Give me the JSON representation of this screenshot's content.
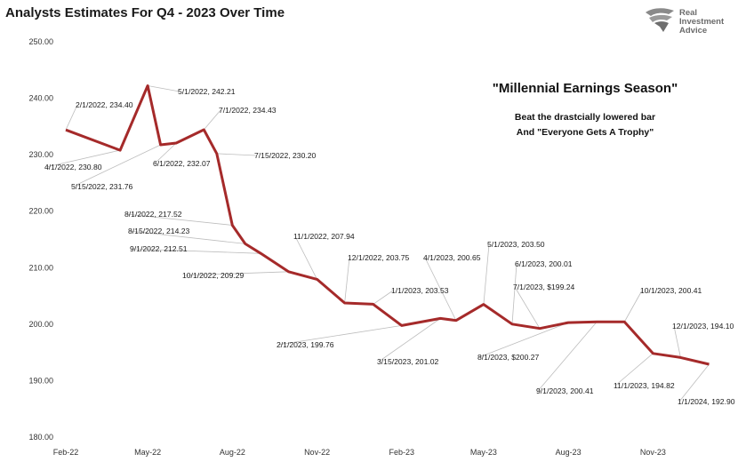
{
  "logo": {
    "line1": "Real",
    "line2": "Investment",
    "line3": "Advice"
  },
  "chart_data": {
    "type": "line",
    "title": "Analysts Estimates For Q4 - 2023 Over Time",
    "xlabel": "",
    "ylabel": "",
    "ylim": [
      180,
      250
    ],
    "yticks": [
      "180.00",
      "190.00",
      "200.00",
      "210.00",
      "220.00",
      "230.00",
      "240.00",
      "250.00"
    ],
    "xticks": [
      {
        "label": "Feb-22",
        "date": "2022-02-01"
      },
      {
        "label": "May-22",
        "date": "2022-05-01"
      },
      {
        "label": "Aug-22",
        "date": "2022-08-01"
      },
      {
        "label": "Nov-22",
        "date": "2022-11-01"
      },
      {
        "label": "Feb-23",
        "date": "2023-02-01"
      },
      {
        "label": "May-23",
        "date": "2023-05-01"
      },
      {
        "label": "Aug-23",
        "date": "2023-08-01"
      },
      {
        "label": "Nov-23",
        "date": "2023-11-01"
      }
    ],
    "xlim": [
      "2022-02-01",
      "2024-01-15"
    ],
    "line_color": "#a52a2a",
    "grid": false,
    "annotations": [
      "\"Millennial Earnings Season\"",
      "Beat the drastcially lowered bar",
      "And \"Everyone Gets A Trophy\""
    ],
    "points": [
      {
        "date": "2022-02-01",
        "value": 234.4,
        "label": "2/1/2022, 234.40"
      },
      {
        "date": "2022-04-01",
        "value": 230.8,
        "label": "4/1/2022, 230.80"
      },
      {
        "date": "2022-05-01",
        "value": 242.21,
        "label": "5/1/2022, 242.21"
      },
      {
        "date": "2022-05-15",
        "value": 231.76,
        "label": "5/15/2022, 231.76"
      },
      {
        "date": "2022-06-01",
        "value": 232.07,
        "label": "6/1/2022, 232.07"
      },
      {
        "date": "2022-07-01",
        "value": 234.43,
        "label": "7/1/2022, 234.43"
      },
      {
        "date": "2022-07-15",
        "value": 230.2,
        "label": "7/15/2022, 230.20"
      },
      {
        "date": "2022-08-01",
        "value": 217.52,
        "label": "8/1/2022, 217.52"
      },
      {
        "date": "2022-08-15",
        "value": 214.23,
        "label": "8/15/2022, 214.23"
      },
      {
        "date": "2022-09-01",
        "value": 212.51,
        "label": "9/1/2022, 212.51"
      },
      {
        "date": "2022-10-01",
        "value": 209.29,
        "label": "10/1/2022, 209.29"
      },
      {
        "date": "2022-11-01",
        "value": 207.94,
        "label": "11/1/2022, 207.94"
      },
      {
        "date": "2022-12-01",
        "value": 203.75,
        "label": "12/1/2022, 203.75"
      },
      {
        "date": "2023-01-01",
        "value": 203.53,
        "label": "1/1/2023, 203.53"
      },
      {
        "date": "2023-02-01",
        "value": 199.76,
        "label": "2/1/2023, 199.76"
      },
      {
        "date": "2023-03-15",
        "value": 201.02,
        "label": "3/15/2023, 201.02"
      },
      {
        "date": "2023-04-01",
        "value": 200.65,
        "label": "4/1/2023, 200.65"
      },
      {
        "date": "2023-05-01",
        "value": 203.5,
        "label": "5/1/2023, 203.50"
      },
      {
        "date": "2023-06-01",
        "value": 200.01,
        "label": "6/1/2023, 200.01"
      },
      {
        "date": "2023-07-01",
        "value": 199.24,
        "label": "7/1/2023, $199.24"
      },
      {
        "date": "2023-08-01",
        "value": 200.27,
        "label": "8/1/2023, $200.27"
      },
      {
        "date": "2023-09-01",
        "value": 200.41,
        "label": "9/1/2023, 200.41"
      },
      {
        "date": "2023-10-01",
        "value": 200.41,
        "label": "10/1/2023, 200.41"
      },
      {
        "date": "2023-11-01",
        "value": 194.82,
        "label": "11/1/2023, 194.82"
      },
      {
        "date": "2023-12-01",
        "value": 194.1,
        "label": "12/1/2023, 194.10"
      },
      {
        "date": "2024-01-01",
        "value": 192.9,
        "label": "1/1/2024, 192.90"
      }
    ]
  }
}
